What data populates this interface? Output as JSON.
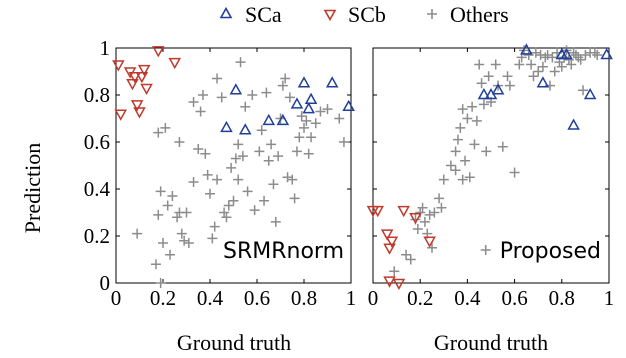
{
  "legend": {
    "entries": [
      {
        "label": "SCa",
        "marker": "triangle-up",
        "color": "#1f3f9a"
      },
      {
        "label": "SCb",
        "marker": "triangle-down",
        "color": "#c0392b"
      },
      {
        "label": "Others",
        "marker": "plus",
        "color": "#8c8c8c"
      }
    ]
  },
  "chart_data": [
    {
      "type": "scatter",
      "panel_label": "SRMRnorm",
      "xlabel": "Ground truth",
      "ylabel": "Prediction",
      "xlim": [
        0,
        1
      ],
      "ylim": [
        0,
        1
      ],
      "xticks": [
        "0",
        "0.2",
        "0.4",
        "0.6",
        "0.8",
        "1"
      ],
      "yticks": [
        "0",
        "0.2",
        "0.4",
        "0.6",
        "0.8",
        "1"
      ],
      "grid": false,
      "series": [
        {
          "name": "SCa",
          "marker": "triangle-up",
          "color": "#1f3f9a",
          "points": [
            [
              0.47,
              0.66
            ],
            [
              0.51,
              0.82
            ],
            [
              0.55,
              0.65
            ],
            [
              0.65,
              0.69
            ],
            [
              0.71,
              0.69
            ],
            [
              0.77,
              0.76
            ],
            [
              0.8,
              0.85
            ],
            [
              0.83,
              0.78
            ],
            [
              0.82,
              0.74
            ],
            [
              0.92,
              0.85
            ],
            [
              0.99,
              0.75
            ]
          ]
        },
        {
          "name": "SCb",
          "marker": "triangle-down",
          "color": "#c0392b",
          "points": [
            [
              0.01,
              0.93
            ],
            [
              0.02,
              0.72
            ],
            [
              0.06,
              0.9
            ],
            [
              0.07,
              0.85
            ],
            [
              0.08,
              0.88
            ],
            [
              0.09,
              0.76
            ],
            [
              0.1,
              0.73
            ],
            [
              0.11,
              0.88
            ],
            [
              0.12,
              0.91
            ],
            [
              0.13,
              0.83
            ],
            [
              0.18,
              0.99
            ],
            [
              0.25,
              0.94
            ]
          ]
        },
        {
          "name": "Others",
          "marker": "plus",
          "color": "#8c8c8c",
          "points": [
            [
              0.09,
              0.21
            ],
            [
              0.17,
              0.08
            ],
            [
              0.18,
              0.29
            ],
            [
              0.18,
              0.64
            ],
            [
              0.19,
              0.0
            ],
            [
              0.19,
              0.39
            ],
            [
              0.2,
              0.17
            ],
            [
              0.21,
              0.66
            ],
            [
              0.22,
              0.33
            ],
            [
              0.23,
              0.12
            ],
            [
              0.24,
              0.37
            ],
            [
              0.26,
              0.28
            ],
            [
              0.27,
              0.3
            ],
            [
              0.27,
              0.6
            ],
            [
              0.28,
              0.21
            ],
            [
              0.29,
              0.18
            ],
            [
              0.3,
              0.3
            ],
            [
              0.31,
              0.17
            ],
            [
              0.33,
              0.43
            ],
            [
              0.33,
              0.77
            ],
            [
              0.35,
              0.57
            ],
            [
              0.36,
              0.73
            ],
            [
              0.37,
              0.8
            ],
            [
              0.38,
              0.55
            ],
            [
              0.39,
              0.46
            ],
            [
              0.4,
              0.38
            ],
            [
              0.41,
              0.19
            ],
            [
              0.42,
              0.24
            ],
            [
              0.43,
              0.44
            ],
            [
              0.43,
              0.87
            ],
            [
              0.45,
              0.79
            ],
            [
              0.46,
              0.3
            ],
            [
              0.47,
              0.28
            ],
            [
              0.48,
              0.33
            ],
            [
              0.49,
              0.49
            ],
            [
              0.5,
              0.35
            ],
            [
              0.51,
              0.53
            ],
            [
              0.52,
              0.44
            ],
            [
              0.52,
              0.59
            ],
            [
              0.53,
              0.94
            ],
            [
              0.54,
              0.54
            ],
            [
              0.55,
              0.75
            ],
            [
              0.56,
              0.39
            ],
            [
              0.58,
              0.8
            ],
            [
              0.59,
              0.31
            ],
            [
              0.61,
              0.56
            ],
            [
              0.62,
              0.65
            ],
            [
              0.63,
              0.35
            ],
            [
              0.64,
              0.81
            ],
            [
              0.65,
              0.52
            ],
            [
              0.66,
              0.59
            ],
            [
              0.67,
              0.42
            ],
            [
              0.68,
              0.26
            ],
            [
              0.69,
              0.54
            ],
            [
              0.7,
              0.7
            ],
            [
              0.71,
              0.84
            ],
            [
              0.72,
              0.87
            ],
            [
              0.73,
              0.45
            ],
            [
              0.74,
              0.79
            ],
            [
              0.75,
              0.44
            ],
            [
              0.76,
              0.36
            ],
            [
              0.77,
              0.56
            ],
            [
              0.78,
              0.62
            ],
            [
              0.79,
              0.71
            ],
            [
              0.8,
              0.66
            ],
            [
              0.81,
              0.69
            ],
            [
              0.82,
              0.55
            ],
            [
              0.83,
              0.62
            ],
            [
              0.85,
              0.68
            ],
            [
              0.87,
              0.73
            ],
            [
              0.9,
              0.74
            ],
            [
              0.95,
              0.7
            ],
            [
              0.97,
              0.6
            ]
          ]
        }
      ]
    },
    {
      "type": "scatter",
      "panel_label": "Proposed",
      "xlabel": "Ground truth",
      "ylabel": "",
      "xlim": [
        0,
        1
      ],
      "ylim": [
        0,
        1
      ],
      "xticks": [
        "0",
        "0.2",
        "0.4",
        "0.6",
        "0.8",
        "1"
      ],
      "yticks": [],
      "grid": false,
      "series": [
        {
          "name": "SCa",
          "marker": "triangle-up",
          "color": "#1f3f9a",
          "points": [
            [
              0.47,
              0.8
            ],
            [
              0.5,
              0.8
            ],
            [
              0.53,
              0.82
            ],
            [
              0.65,
              0.99
            ],
            [
              0.72,
              0.85
            ],
            [
              0.8,
              0.97
            ],
            [
              0.82,
              0.97
            ],
            [
              0.85,
              0.67
            ],
            [
              0.92,
              0.8
            ],
            [
              0.99,
              0.97
            ]
          ]
        },
        {
          "name": "SCb",
          "marker": "triangle-down",
          "color": "#c0392b",
          "points": [
            [
              0.0,
              0.31
            ],
            [
              0.02,
              0.31
            ],
            [
              0.06,
              0.21
            ],
            [
              0.07,
              0.01
            ],
            [
              0.07,
              0.15
            ],
            [
              0.08,
              0.18
            ],
            [
              0.11,
              0.0
            ],
            [
              0.13,
              0.31
            ],
            [
              0.18,
              0.28
            ],
            [
              0.24,
              0.18
            ]
          ]
        },
        {
          "name": "Others",
          "marker": "plus",
          "color": "#8c8c8c",
          "points": [
            [
              0.09,
              0.05
            ],
            [
              0.14,
              0.12
            ],
            [
              0.16,
              0.1
            ],
            [
              0.18,
              0.27
            ],
            [
              0.19,
              0.23
            ],
            [
              0.2,
              0.3
            ],
            [
              0.21,
              0.32
            ],
            [
              0.22,
              0.26
            ],
            [
              0.23,
              0.21
            ],
            [
              0.24,
              0.29
            ],
            [
              0.25,
              0.15
            ],
            [
              0.26,
              0.3
            ],
            [
              0.28,
              0.36
            ],
            [
              0.29,
              0.32
            ],
            [
              0.3,
              0.44
            ],
            [
              0.33,
              0.5
            ],
            [
              0.35,
              0.48
            ],
            [
              0.35,
              0.56
            ],
            [
              0.36,
              0.61
            ],
            [
              0.37,
              0.66
            ],
            [
              0.38,
              0.44
            ],
            [
              0.38,
              0.74
            ],
            [
              0.39,
              0.52
            ],
            [
              0.4,
              0.7
            ],
            [
              0.41,
              0.45
            ],
            [
              0.42,
              0.75
            ],
            [
              0.43,
              0.59
            ],
            [
              0.44,
              0.69
            ],
            [
              0.45,
              0.93
            ],
            [
              0.46,
              0.85
            ],
            [
              0.47,
              0.76
            ],
            [
              0.48,
              0.56
            ],
            [
              0.49,
              0.88
            ],
            [
              0.5,
              0.77
            ],
            [
              0.52,
              0.93
            ],
            [
              0.53,
              0.84
            ],
            [
              0.55,
              0.58
            ],
            [
              0.57,
              0.88
            ],
            [
              0.58,
              0.84
            ],
            [
              0.6,
              0.47
            ],
            [
              0.62,
              0.93
            ],
            [
              0.63,
              0.96
            ],
            [
              0.64,
              0.99
            ],
            [
              0.66,
              0.97
            ],
            [
              0.67,
              0.93
            ],
            [
              0.68,
              0.88
            ],
            [
              0.69,
              0.98
            ],
            [
              0.7,
              0.9
            ],
            [
              0.71,
              0.97
            ],
            [
              0.72,
              0.92
            ],
            [
              0.73,
              0.96
            ],
            [
              0.74,
              0.97
            ],
            [
              0.75,
              0.84
            ],
            [
              0.76,
              0.96
            ],
            [
              0.77,
              0.9
            ],
            [
              0.78,
              0.98
            ],
            [
              0.79,
              0.94
            ],
            [
              0.8,
              0.92
            ],
            [
              0.81,
              0.96
            ],
            [
              0.82,
              0.99
            ],
            [
              0.83,
              0.95
            ],
            [
              0.84,
              0.93
            ],
            [
              0.85,
              0.98
            ],
            [
              0.86,
              0.97
            ],
            [
              0.87,
              0.96
            ],
            [
              0.88,
              0.95
            ],
            [
              0.89,
              0.82
            ],
            [
              0.9,
              0.97
            ],
            [
              0.92,
              0.98
            ],
            [
              0.94,
              0.98
            ],
            [
              0.95,
              0.97
            ]
          ]
        }
      ]
    }
  ]
}
